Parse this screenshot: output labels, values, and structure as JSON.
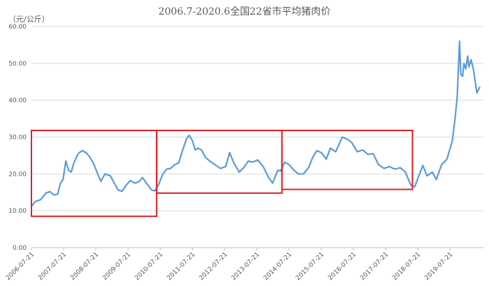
{
  "chart_data": {
    "type": "line",
    "title": "2006.7-2020.6全国22省市平均猪肉价",
    "ylabel": "（元/公斤）",
    "xlabel": "",
    "ylim": [
      0,
      60
    ],
    "yticks": [
      "0.00",
      "10.00",
      "20.00",
      "30.00",
      "40.00",
      "50.00",
      "60.00"
    ],
    "xticks": [
      "2006-07-21",
      "2007-07-21",
      "2008-07-21",
      "2009-07-21",
      "2010-07-21",
      "2011-07-21",
      "2012-07-21",
      "2013-07-21",
      "2014-07-21",
      "2015-07-21",
      "2016-07-21",
      "2017-07-21",
      "2018-07-21",
      "2019-07-21"
    ],
    "grid": true,
    "legend": "none",
    "series": [
      {
        "color": "#5b9bd5",
        "x": [
          "2006-07-21",
          "2006-09-01",
          "2006-11-01",
          "2007-01-01",
          "2007-02-15",
          "2007-04-01",
          "2007-05-15",
          "2007-06-15",
          "2007-07-15",
          "2007-08-15",
          "2007-09-15",
          "2007-10-15",
          "2007-11-15",
          "2008-01-01",
          "2008-02-15",
          "2008-04-01",
          "2008-05-15",
          "2008-07-01",
          "2008-08-01",
          "2008-09-15",
          "2008-11-01",
          "2009-01-01",
          "2009-02-15",
          "2009-04-01",
          "2009-05-15",
          "2009-07-01",
          "2009-08-15",
          "2009-10-01",
          "2009-11-15",
          "2010-01-01",
          "2010-02-15",
          "2010-04-15",
          "2010-05-20",
          "2010-07-01",
          "2010-08-15",
          "2010-10-01",
          "2010-11-15",
          "2011-01-01",
          "2011-02-15",
          "2011-04-01",
          "2011-05-15",
          "2011-06-15",
          "2011-07-21",
          "2011-08-20",
          "2011-09-20",
          "2011-11-01",
          "2011-12-15",
          "2012-02-01",
          "2012-04-01",
          "2012-06-01",
          "2012-08-01",
          "2012-09-15",
          "2012-11-01",
          "2013-01-01",
          "2013-02-15",
          "2013-04-15",
          "2013-06-01",
          "2013-08-01",
          "2013-10-01",
          "2013-12-01",
          "2014-01-15",
          "2014-03-15",
          "2014-04-15",
          "2014-06-01",
          "2014-07-21",
          "2014-09-15",
          "2014-11-01",
          "2015-01-01",
          "2015-03-01",
          "2015-04-15",
          "2015-06-01",
          "2015-07-21",
          "2015-09-15",
          "2015-11-01",
          "2016-01-01",
          "2016-03-15",
          "2016-05-20",
          "2016-07-01",
          "2016-09-01",
          "2016-11-01",
          "2017-01-01",
          "2017-03-01",
          "2017-05-01",
          "2017-07-01",
          "2017-09-01",
          "2017-11-01",
          "2018-01-01",
          "2018-03-01",
          "2018-05-01",
          "2018-06-15",
          "2018-08-01",
          "2018-09-15",
          "2018-11-01",
          "2019-01-01",
          "2019-02-15",
          "2019-04-15",
          "2019-06-15",
          "2019-08-15",
          "2019-09-15",
          "2019-10-10",
          "2019-11-05",
          "2019-11-20",
          "2019-12-10",
          "2019-12-25",
          "2020-01-15",
          "2020-02-05",
          "2020-02-20",
          "2020-03-15",
          "2020-04-10",
          "2020-05-01",
          "2020-05-20",
          "2020-06-20"
        ],
        "values": [
          11.2,
          12.5,
          13.0,
          14.8,
          15.2,
          14.3,
          14.5,
          17.5,
          18.5,
          23.5,
          21.0,
          20.5,
          23.0,
          25.5,
          26.3,
          25.8,
          24.5,
          22.5,
          20.5,
          18.0,
          20.0,
          19.5,
          17.5,
          15.6,
          15.3,
          17.0,
          18.2,
          17.5,
          17.8,
          19.0,
          17.5,
          15.6,
          15.4,
          17.0,
          19.8,
          21.3,
          21.5,
          22.5,
          23.0,
          26.5,
          29.5,
          30.5,
          29.0,
          26.5,
          27.0,
          26.5,
          24.5,
          23.5,
          22.5,
          21.5,
          22.0,
          25.8,
          23.0,
          20.5,
          21.5,
          23.5,
          23.2,
          23.8,
          22.0,
          19.0,
          17.5,
          21.0,
          20.8,
          23.2,
          22.5,
          21.0,
          20.0,
          20.0,
          21.8,
          24.5,
          26.3,
          25.8,
          24.0,
          27.0,
          26.0,
          30.0,
          29.3,
          28.5,
          26.0,
          26.5,
          25.3,
          25.5,
          22.5,
          21.5,
          22.0,
          21.3,
          21.7,
          20.5,
          17.0,
          16.5,
          19.5,
          22.3,
          19.5,
          20.5,
          18.5,
          22.5,
          24.0,
          29.0,
          35.0,
          41.0,
          56.0,
          47.0,
          46.5,
          50.0,
          48.5,
          52.0,
          49.0,
          51.0,
          48.5,
          45.0,
          42.0,
          43.5
        ]
      }
    ],
    "highlight_boxes": [
      {
        "x0": "2006-07-21",
        "x1": "2010-06-10",
        "y0": 8.5,
        "y1": 31.8
      },
      {
        "x0": "2010-06-10",
        "x1": "2014-05-01",
        "y0": 14.8,
        "y1": 31.8
      },
      {
        "x0": "2014-05-01",
        "x1": "2018-05-20",
        "y0": 15.8,
        "y1": 31.8
      }
    ]
  }
}
